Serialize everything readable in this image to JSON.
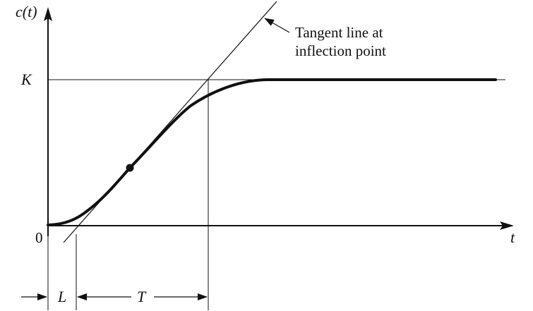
{
  "figure": {
    "y_axis_label": "c(t)",
    "x_axis_label": "t",
    "origin_label": "0",
    "k_label": "K",
    "annotation_line1": "Tangent line at",
    "annotation_line2": "inflection point",
    "dim_l_label": "L",
    "dim_t_label": "T"
  },
  "colors": {
    "ink": "#111111",
    "background": "#ffffff"
  }
}
